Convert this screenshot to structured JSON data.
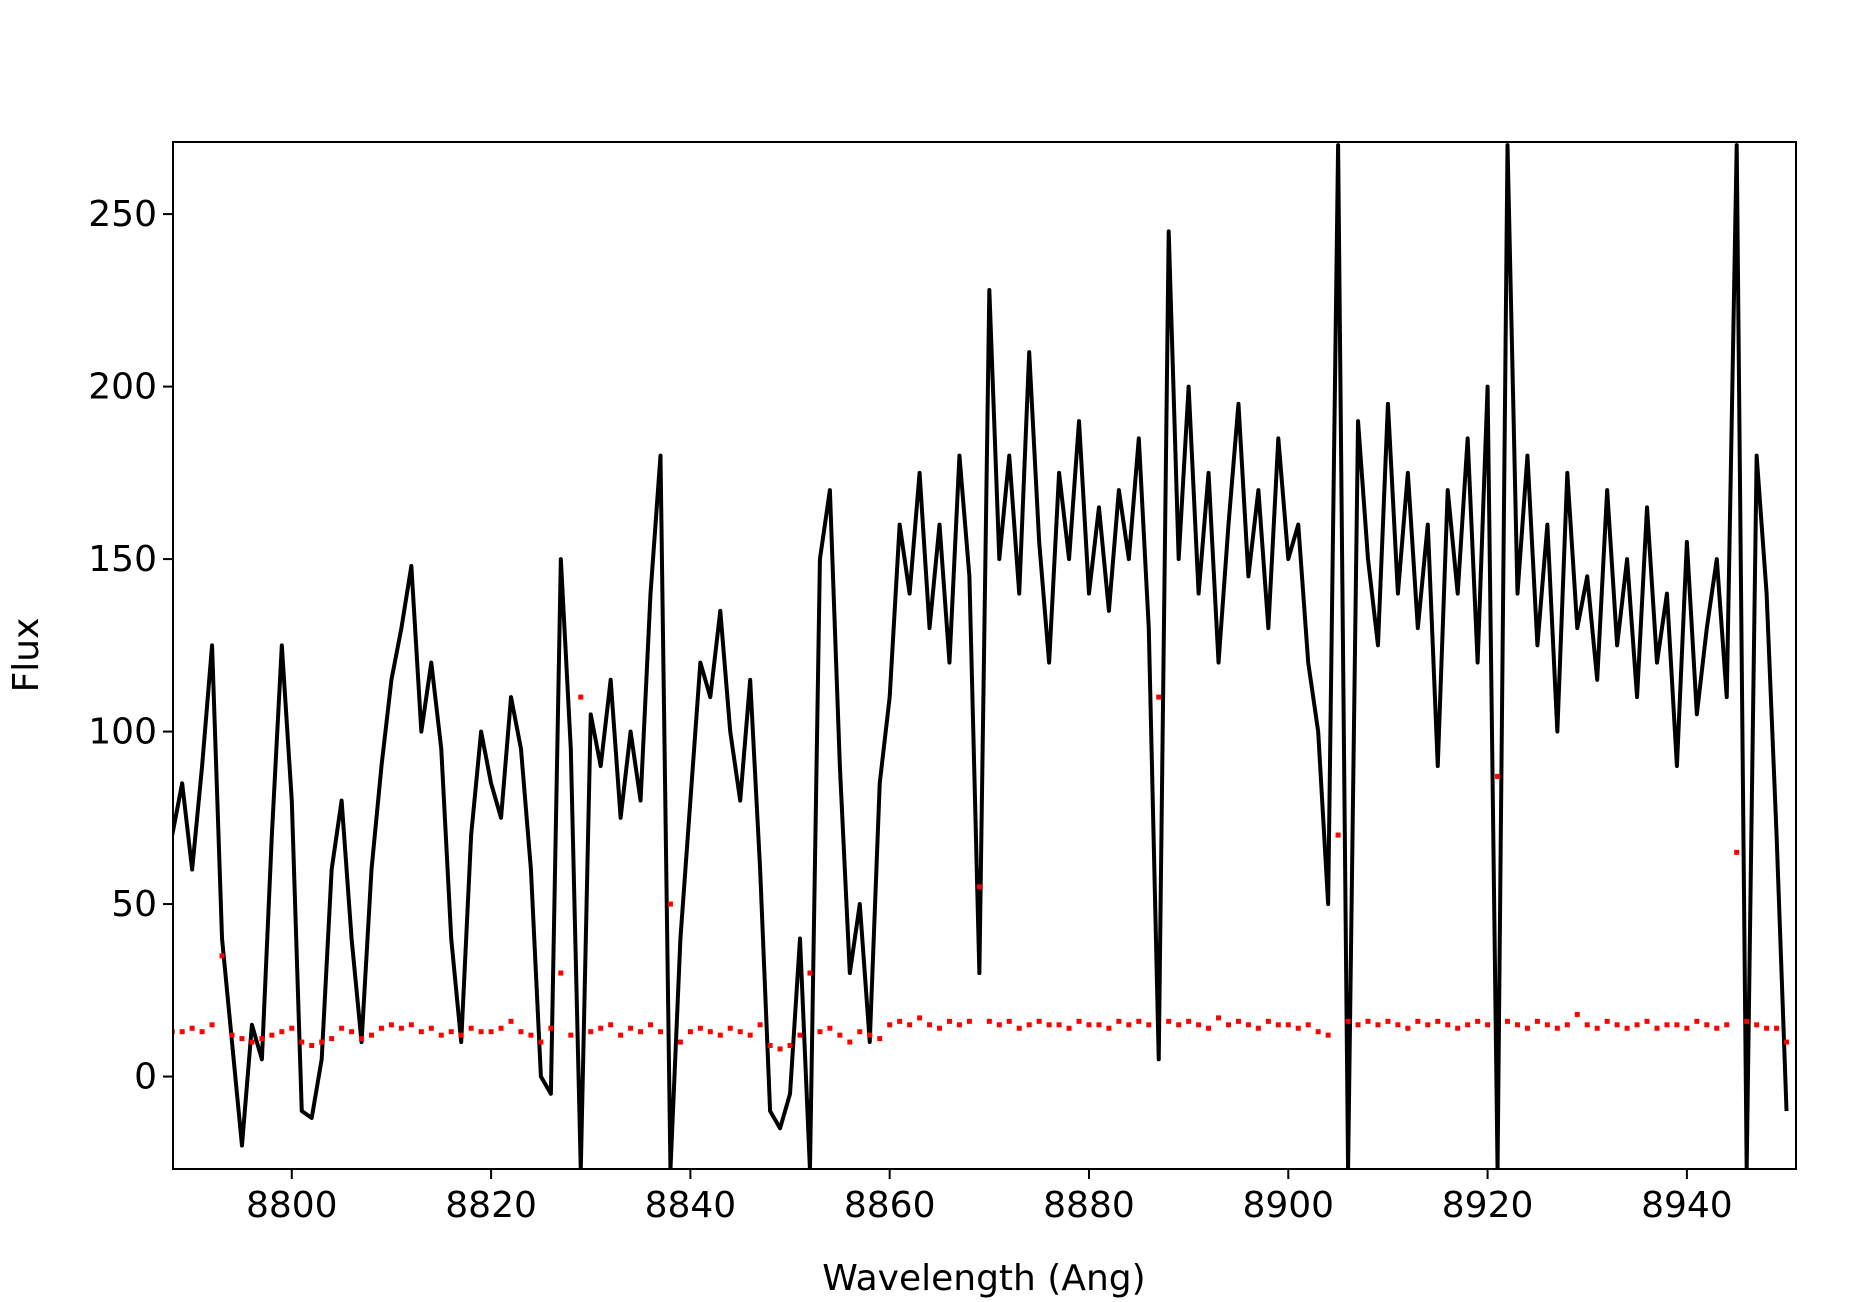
{
  "chart_data": {
    "type": "line",
    "x_label": "Wavelength (Ang)",
    "y_label": "Flux",
    "x": [
      8788,
      8789,
      8790,
      8791,
      8792,
      8793,
      8794,
      8795,
      8796,
      8797,
      8798,
      8799,
      8800,
      8801,
      8802,
      8803,
      8804,
      8805,
      8806,
      8807,
      8808,
      8809,
      8810,
      8811,
      8812,
      8813,
      8814,
      8815,
      8816,
      8817,
      8818,
      8819,
      8820,
      8821,
      8822,
      8823,
      8824,
      8825,
      8826,
      8827,
      8828,
      8829,
      8830,
      8831,
      8832,
      8833,
      8834,
      8835,
      8836,
      8837,
      8838,
      8839,
      8840,
      8841,
      8842,
      8843,
      8844,
      8845,
      8846,
      8847,
      8848,
      8849,
      8850,
      8851,
      8852,
      8853,
      8854,
      8855,
      8856,
      8857,
      8858,
      8859,
      8860,
      8861,
      8862,
      8863,
      8864,
      8865,
      8866,
      8867,
      8868,
      8869,
      8870,
      8871,
      8872,
      8873,
      8874,
      8875,
      8876,
      8877,
      8878,
      8879,
      8880,
      8881,
      8882,
      8883,
      8884,
      8885,
      8886,
      8887,
      8888,
      8889,
      8890,
      8891,
      8892,
      8893,
      8894,
      8895,
      8896,
      8897,
      8898,
      8899,
      8900,
      8901,
      8902,
      8903,
      8904,
      8905,
      8906,
      8907,
      8908,
      8909,
      8910,
      8911,
      8912,
      8913,
      8914,
      8915,
      8916,
      8917,
      8918,
      8919,
      8920,
      8921,
      8922,
      8923,
      8924,
      8925,
      8926,
      8927,
      8928,
      8929,
      8930,
      8931,
      8932,
      8933,
      8934,
      8935,
      8936,
      8937,
      8938,
      8939,
      8940,
      8941,
      8942,
      8943,
      8944,
      8945,
      8946,
      8947,
      8948,
      8949,
      8950
    ],
    "series": [
      {
        "color": "#000000",
        "style": "line",
        "values": [
          70,
          85,
          60,
          90,
          125,
          40,
          10,
          -20,
          15,
          5,
          70,
          125,
          80,
          -10,
          -12,
          5,
          60,
          80,
          40,
          10,
          60,
          90,
          115,
          130,
          148,
          100,
          120,
          95,
          40,
          10,
          70,
          100,
          85,
          75,
          110,
          95,
          60,
          0,
          -5,
          150,
          95,
          -27,
          105,
          90,
          115,
          75,
          100,
          80,
          140,
          180,
          -27,
          40,
          80,
          120,
          110,
          135,
          100,
          80,
          115,
          60,
          -10,
          -15,
          -5,
          40,
          -27,
          150,
          170,
          90,
          30,
          50,
          10,
          85,
          110,
          160,
          140,
          175,
          130,
          160,
          120,
          180,
          145,
          30,
          228,
          150,
          180,
          140,
          210,
          155,
          120,
          175,
          150,
          190,
          140,
          165,
          135,
          170,
          150,
          185,
          130,
          5,
          245,
          150,
          200,
          140,
          175,
          120,
          160,
          195,
          145,
          170,
          130,
          185,
          150,
          160,
          120,
          100,
          50,
          270,
          -27,
          190,
          150,
          125,
          195,
          140,
          175,
          130,
          160,
          90,
          170,
          140,
          185,
          120,
          200,
          -27,
          270,
          140,
          180,
          125,
          160,
          100,
          175,
          130,
          145,
          115,
          170,
          125,
          150,
          110,
          165,
          120,
          140,
          90,
          155,
          105,
          130,
          150,
          110,
          270,
          -27,
          180,
          140,
          70,
          -10
        ]
      },
      {
        "color": "#ff0000",
        "style": "dots",
        "values": [
          13,
          13,
          14,
          13,
          15,
          35,
          12,
          11,
          10,
          11,
          12,
          13,
          14,
          10,
          9,
          10,
          11,
          14,
          13,
          11,
          12,
          14,
          15,
          14,
          15,
          13,
          14,
          12,
          13,
          12,
          14,
          13,
          13,
          14,
          16,
          13,
          12,
          10,
          14,
          30,
          12,
          110,
          13,
          14,
          15,
          12,
          14,
          13,
          15,
          13,
          50,
          10,
          13,
          14,
          13,
          12,
          14,
          13,
          12,
          15,
          9,
          8,
          9,
          12,
          30,
          13,
          14,
          12,
          10,
          13,
          12,
          11,
          15,
          16,
          15,
          17,
          15,
          14,
          16,
          15,
          16,
          55,
          16,
          15,
          16,
          14,
          15,
          16,
          15,
          15,
          14,
          16,
          15,
          15,
          14,
          16,
          15,
          16,
          15,
          110,
          16,
          15,
          16,
          15,
          14,
          17,
          15,
          16,
          15,
          14,
          16,
          15,
          15,
          14,
          15,
          13,
          12,
          70,
          16,
          15,
          16,
          15,
          16,
          15,
          14,
          16,
          15,
          16,
          15,
          14,
          15,
          16,
          15,
          87,
          16,
          15,
          14,
          16,
          15,
          14,
          15,
          18,
          15,
          14,
          16,
          15,
          14,
          15,
          16,
          14,
          15,
          15,
          14,
          16,
          15,
          14,
          15,
          65,
          16,
          15,
          14,
          14,
          10
        ]
      }
    ],
    "xlim": [
      8788.08,
      8950.95
    ],
    "ylim": [
      -26.8,
      270.9
    ],
    "xticks": [
      8800,
      8820,
      8840,
      8860,
      8880,
      8900,
      8920,
      8940
    ],
    "yticks": [
      0,
      50,
      100,
      150,
      200,
      250
    ]
  }
}
